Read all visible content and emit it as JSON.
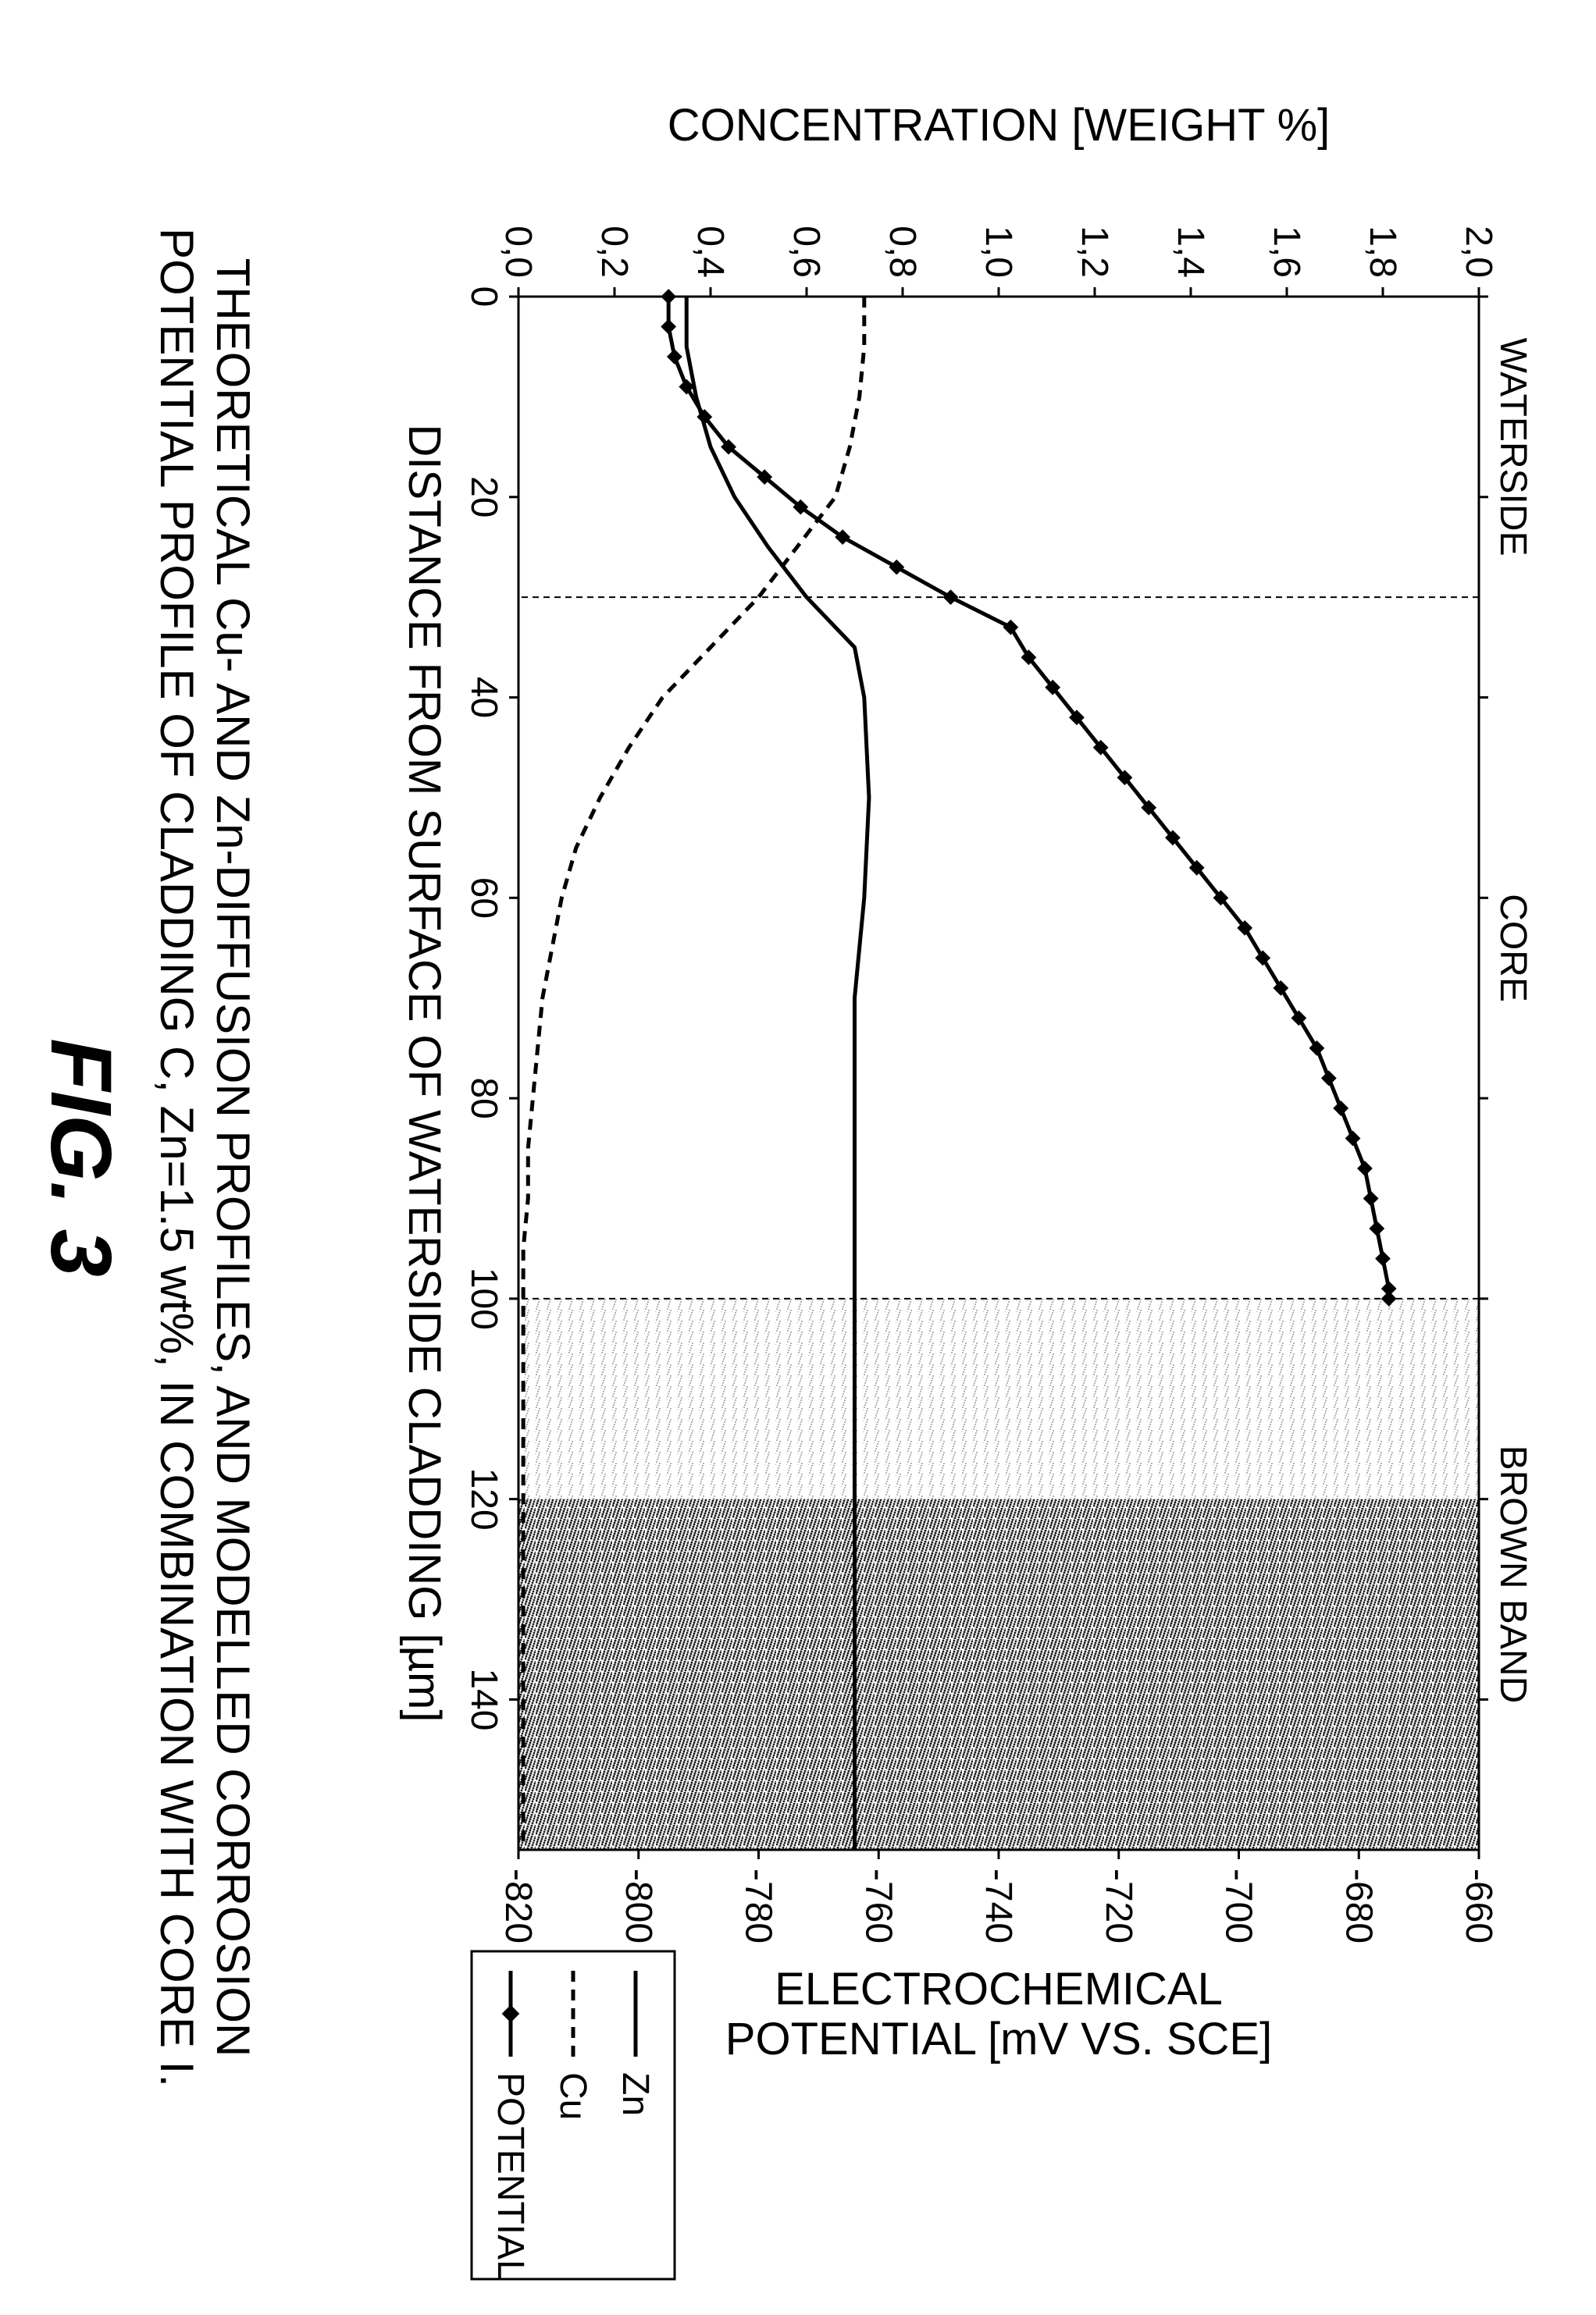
{
  "figure_label": "FIG. 3",
  "caption_line1": "THEORETICAL Cu- AND Zn-DIFFUSION PROFILES, AND MODELLED CORROSION",
  "caption_line2": "POTENTIAL PROFILE OF CLADDING C, Zn=1.5 wt%, IN COMBINATION WITH CORE I.",
  "chart": {
    "type": "line",
    "background_color": "#ffffff",
    "plot_border_color": "#000000",
    "plot_border_width": 3,
    "font_family": "Arial",
    "axis_label_fontsize": 58,
    "tick_fontsize": 48,
    "region_label_fontsize": 48,
    "legend_fontsize": 48,
    "x_axis": {
      "label": "DISTANCE FROM SURFACE OF WATERSIDE CLADDING [µm]",
      "min": 0,
      "max": 155,
      "ticks": [
        0,
        20,
        40,
        60,
        80,
        100,
        120,
        140
      ],
      "tick_len": 12
    },
    "y_left": {
      "label": "CONCENTRATION [WEIGHT %]",
      "min": 0.0,
      "max": 2.0,
      "ticks": [
        "0,0",
        "0,2",
        "0,4",
        "0,6",
        "0,8",
        "1,0",
        "1,2",
        "1,4",
        "1,6",
        "1,8",
        "2,0"
      ],
      "tick_values": [
        0.0,
        0.2,
        0.4,
        0.6,
        0.8,
        1.0,
        1.2,
        1.4,
        1.6,
        1.8,
        2.0
      ]
    },
    "y_right": {
      "label": "ELECTROCHEMICAL\nPOTENTIAL [mV VS. SCE]",
      "min": -820,
      "max": -660,
      "ticks": [
        -660,
        -680,
        -700,
        -720,
        -740,
        -760,
        -780,
        -800,
        -820
      ]
    },
    "regions": [
      {
        "label": "WATERSIDE",
        "x_start": 0,
        "x_end": 30,
        "fill": "none"
      },
      {
        "label": "CORE",
        "x_start": 30,
        "x_end": 100,
        "fill": "none"
      },
      {
        "label": "BROWN BAND",
        "x_start": 100,
        "x_end": 155,
        "fill_light": "#d9d9d9",
        "fill_dark": "#7a7a7a",
        "light_end": 120
      }
    ],
    "boundary_lines": {
      "color": "#000000",
      "dash": "8,6",
      "width": 2,
      "positions": [
        30,
        100
      ]
    },
    "series": [
      {
        "name": "Zn",
        "axis": "left",
        "color": "#000000",
        "width": 5,
        "dash": "none",
        "markers": false,
        "points": [
          [
            0,
            0.35
          ],
          [
            5,
            0.35
          ],
          [
            10,
            0.37
          ],
          [
            15,
            0.4
          ],
          [
            20,
            0.45
          ],
          [
            25,
            0.52
          ],
          [
            30,
            0.6
          ],
          [
            35,
            0.7
          ],
          [
            40,
            0.72
          ],
          [
            50,
            0.73
          ],
          [
            60,
            0.72
          ],
          [
            70,
            0.7
          ],
          [
            80,
            0.7
          ],
          [
            90,
            0.7
          ],
          [
            100,
            0.7
          ],
          [
            110,
            0.7
          ],
          [
            120,
            0.7
          ],
          [
            130,
            0.7
          ],
          [
            140,
            0.7
          ],
          [
            150,
            0.7
          ],
          [
            155,
            0.7
          ]
        ]
      },
      {
        "name": "Cu",
        "axis": "left",
        "color": "#000000",
        "width": 5,
        "dash": "14,10",
        "markers": false,
        "points": [
          [
            0,
            0.72
          ],
          [
            5,
            0.72
          ],
          [
            10,
            0.71
          ],
          [
            15,
            0.69
          ],
          [
            20,
            0.66
          ],
          [
            25,
            0.58
          ],
          [
            30,
            0.5
          ],
          [
            35,
            0.4
          ],
          [
            40,
            0.3
          ],
          [
            45,
            0.23
          ],
          [
            50,
            0.17
          ],
          [
            55,
            0.12
          ],
          [
            60,
            0.09
          ],
          [
            65,
            0.07
          ],
          [
            70,
            0.05
          ],
          [
            75,
            0.04
          ],
          [
            80,
            0.03
          ],
          [
            85,
            0.02
          ],
          [
            90,
            0.02
          ],
          [
            95,
            0.01
          ],
          [
            100,
            0.01
          ],
          [
            110,
            0.01
          ],
          [
            120,
            0.01
          ],
          [
            130,
            0.01
          ],
          [
            140,
            0.01
          ],
          [
            150,
            0.01
          ],
          [
            155,
            0.01
          ]
        ]
      },
      {
        "name": "POTENTIAL",
        "axis": "right",
        "color": "#000000",
        "width": 5,
        "dash": "none",
        "markers": true,
        "marker_size": 7,
        "points": [
          [
            0,
            -795
          ],
          [
            3,
            -795
          ],
          [
            6,
            -794
          ],
          [
            9,
            -792
          ],
          [
            12,
            -789
          ],
          [
            15,
            -785
          ],
          [
            18,
            -779
          ],
          [
            21,
            -773
          ],
          [
            24,
            -766
          ],
          [
            27,
            -757
          ],
          [
            30,
            -748
          ],
          [
            33,
            -738
          ],
          [
            36,
            -735
          ],
          [
            39,
            -731
          ],
          [
            42,
            -727
          ],
          [
            45,
            -723
          ],
          [
            48,
            -719
          ],
          [
            51,
            -715
          ],
          [
            54,
            -711
          ],
          [
            57,
            -707
          ],
          [
            60,
            -703
          ],
          [
            63,
            -699
          ],
          [
            66,
            -696
          ],
          [
            69,
            -693
          ],
          [
            72,
            -690
          ],
          [
            75,
            -687
          ],
          [
            78,
            -685
          ],
          [
            81,
            -683
          ],
          [
            84,
            -681
          ],
          [
            87,
            -679
          ],
          [
            90,
            -678
          ],
          [
            93,
            -677
          ],
          [
            96,
            -676
          ],
          [
            99,
            -675
          ],
          [
            100,
            -675
          ]
        ]
      }
    ],
    "legend": {
      "border_color": "#000000",
      "border_width": 3,
      "bg": "#ffffff",
      "items": [
        "Zn",
        "Cu",
        "POTENTIAL"
      ]
    }
  }
}
